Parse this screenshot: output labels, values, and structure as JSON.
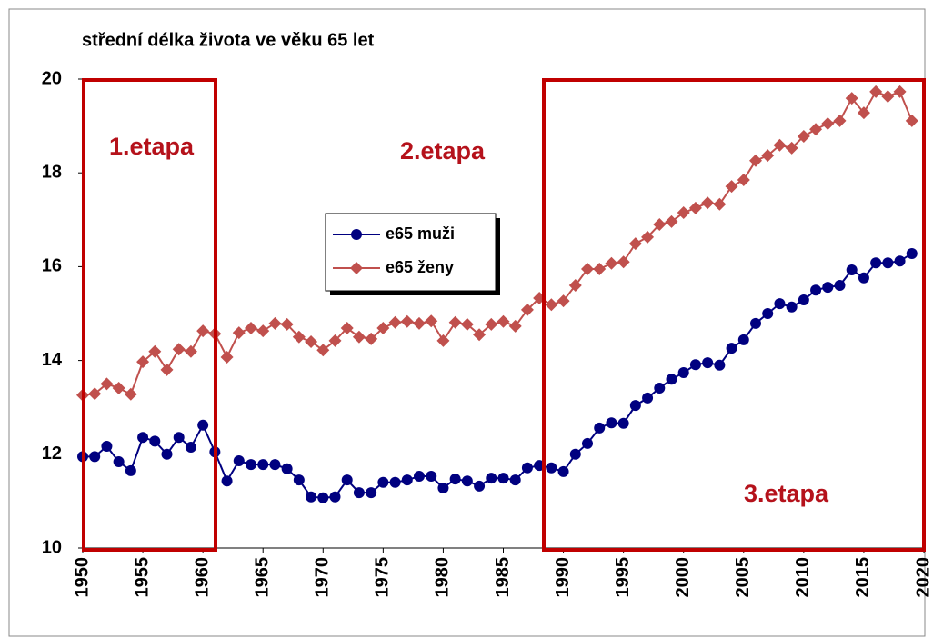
{
  "chart_data": {
    "type": "line",
    "title": "střední délka života ve věku 65 let",
    "annotations": [
      "1.etapa",
      "2.etapa",
      "3.etapa"
    ],
    "x": [
      1950,
      1951,
      1952,
      1953,
      1954,
      1955,
      1956,
      1957,
      1958,
      1959,
      1960,
      1961,
      1962,
      1963,
      1964,
      1965,
      1966,
      1967,
      1968,
      1969,
      1970,
      1971,
      1972,
      1973,
      1974,
      1975,
      1976,
      1977,
      1978,
      1979,
      1980,
      1981,
      1982,
      1983,
      1984,
      1985,
      1986,
      1987,
      1988,
      1989,
      1990,
      1991,
      1992,
      1993,
      1994,
      1995,
      1996,
      1997,
      1998,
      1999,
      2000,
      2001,
      2002,
      2003,
      2004,
      2005,
      2006,
      2007,
      2008,
      2009,
      2010,
      2011,
      2012,
      2013,
      2014,
      2015,
      2016,
      2017,
      2018,
      2019
    ],
    "series": [
      {
        "name": "e65 muži",
        "color": "#000080",
        "marker": "circle",
        "values": [
          11.95,
          11.95,
          12.17,
          11.84,
          11.65,
          12.36,
          12.28,
          12.0,
          12.36,
          12.15,
          12.62,
          12.05,
          11.43,
          11.86,
          11.78,
          11.78,
          11.78,
          11.69,
          11.45,
          11.09,
          11.07,
          11.09,
          11.45,
          11.18,
          11.18,
          11.4,
          11.4,
          11.45,
          11.53,
          11.53,
          11.28,
          11.47,
          11.43,
          11.32,
          11.49,
          11.49,
          11.45,
          11.71,
          11.76,
          11.71,
          11.63,
          12.0,
          12.23,
          12.56,
          12.67,
          12.66,
          13.04,
          13.2,
          13.41,
          13.6,
          13.74,
          13.91,
          13.95,
          13.9,
          14.26,
          14.44,
          14.79,
          15.0,
          15.21,
          15.14,
          15.29,
          15.5,
          15.56,
          15.6,
          15.93,
          15.76,
          16.08,
          16.08,
          16.12,
          16.28
        ]
      },
      {
        "name": "e65 ženy",
        "color": "#c0504d",
        "marker": "diamond",
        "values": [
          13.26,
          13.29,
          13.5,
          13.41,
          13.28,
          13.97,
          14.19,
          13.8,
          14.24,
          14.19,
          14.63,
          14.57,
          14.07,
          14.59,
          14.69,
          14.63,
          14.79,
          14.77,
          14.5,
          14.4,
          14.22,
          14.42,
          14.69,
          14.5,
          14.46,
          14.69,
          14.81,
          14.83,
          14.79,
          14.84,
          14.42,
          14.81,
          14.77,
          14.55,
          14.77,
          14.83,
          14.73,
          15.08,
          15.33,
          15.19,
          15.27,
          15.6,
          15.95,
          15.95,
          16.07,
          16.1,
          16.49,
          16.63,
          16.9,
          16.96,
          17.15,
          17.25,
          17.36,
          17.33,
          17.71,
          17.85,
          18.26,
          18.37,
          18.59,
          18.53,
          18.78,
          18.93,
          19.05,
          19.11,
          19.59,
          19.28,
          19.73,
          19.63,
          19.73,
          19.11
        ]
      }
    ],
    "xlim": [
      1950,
      2020
    ],
    "xticks": [
      1950,
      1955,
      1960,
      1965,
      1970,
      1975,
      1980,
      1985,
      1990,
      1995,
      2000,
      2005,
      2010,
      2015,
      2020
    ],
    "ylim": [
      10,
      20
    ],
    "yticks": [
      10,
      12,
      14,
      16,
      18,
      20
    ],
    "grid": false
  }
}
